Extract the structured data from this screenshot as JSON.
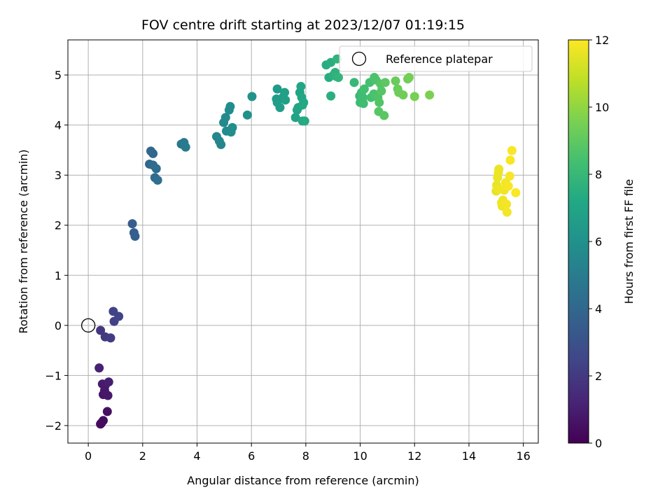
{
  "chart_data": {
    "type": "scatter",
    "title": "FOV centre drift starting at 2023/12/07 01:19:15",
    "xlabel": "Angular distance from reference (arcmin)",
    "ylabel": "Rotation from reference (arcmin)",
    "xlim": [
      -0.75,
      16.55
    ],
    "ylim": [
      -2.35,
      5.7
    ],
    "xticks": [
      0,
      2,
      4,
      6,
      8,
      10,
      12,
      14,
      16
    ],
    "yticks": [
      -2,
      -1,
      0,
      1,
      2,
      3,
      4,
      5
    ],
    "grid": true,
    "legend": {
      "position": "top-right",
      "entries": [
        "Reference platepar"
      ]
    },
    "reference_point": {
      "x": 0,
      "y": 0,
      "label": "Reference platepar"
    },
    "colorbar": {
      "label": "Hours from first FF file",
      "min": 0,
      "max": 12,
      "ticks": [
        0,
        2,
        4,
        6,
        8,
        10,
        12
      ],
      "colormap": "viridis"
    },
    "points": [
      {
        "x": 0.45,
        "y": -1.97,
        "c": 0.3
      },
      {
        "x": 0.55,
        "y": -1.9,
        "c": 0.4
      },
      {
        "x": 0.48,
        "y": -1.95,
        "c": 0.35
      },
      {
        "x": 0.7,
        "y": -1.72,
        "c": 0.5
      },
      {
        "x": 0.55,
        "y": -1.38,
        "c": 0.7
      },
      {
        "x": 0.72,
        "y": -1.4,
        "c": 0.8
      },
      {
        "x": 0.6,
        "y": -1.3,
        "c": 0.75
      },
      {
        "x": 0.52,
        "y": -1.17,
        "c": 0.9
      },
      {
        "x": 0.62,
        "y": -1.2,
        "c": 0.85
      },
      {
        "x": 0.75,
        "y": -1.13,
        "c": 1.0
      },
      {
        "x": 0.4,
        "y": -0.85,
        "c": 1.1
      },
      {
        "x": 0.45,
        "y": -0.1,
        "c": 1.9
      },
      {
        "x": 0.62,
        "y": -0.23,
        "c": 2.0
      },
      {
        "x": 0.82,
        "y": -0.25,
        "c": 2.1
      },
      {
        "x": 0.95,
        "y": 0.08,
        "c": 2.3
      },
      {
        "x": 1.12,
        "y": 0.18,
        "c": 2.4
      },
      {
        "x": 0.92,
        "y": 0.28,
        "c": 2.35
      },
      {
        "x": 1.62,
        "y": 2.03,
        "c": 3.5
      },
      {
        "x": 1.68,
        "y": 1.85,
        "c": 3.55
      },
      {
        "x": 1.72,
        "y": 1.78,
        "c": 3.6
      },
      {
        "x": 2.25,
        "y": 3.22,
        "c": 4.0
      },
      {
        "x": 2.3,
        "y": 3.48,
        "c": 4.05
      },
      {
        "x": 2.38,
        "y": 3.43,
        "c": 4.1
      },
      {
        "x": 2.38,
        "y": 3.2,
        "c": 4.15
      },
      {
        "x": 2.5,
        "y": 3.13,
        "c": 4.2
      },
      {
        "x": 2.45,
        "y": 2.95,
        "c": 4.25
      },
      {
        "x": 2.55,
        "y": 2.9,
        "c": 4.3
      },
      {
        "x": 3.42,
        "y": 3.62,
        "c": 4.8
      },
      {
        "x": 3.52,
        "y": 3.65,
        "c": 4.85
      },
      {
        "x": 3.58,
        "y": 3.56,
        "c": 4.9
      },
      {
        "x": 4.72,
        "y": 3.77,
        "c": 5.4
      },
      {
        "x": 4.82,
        "y": 3.68,
        "c": 5.45
      },
      {
        "x": 4.88,
        "y": 3.61,
        "c": 5.5
      },
      {
        "x": 4.98,
        "y": 4.05,
        "c": 5.6
      },
      {
        "x": 5.05,
        "y": 4.15,
        "c": 5.65
      },
      {
        "x": 5.08,
        "y": 3.88,
        "c": 5.7
      },
      {
        "x": 5.18,
        "y": 4.3,
        "c": 5.75
      },
      {
        "x": 5.22,
        "y": 4.37,
        "c": 5.8
      },
      {
        "x": 5.25,
        "y": 3.86,
        "c": 5.8
      },
      {
        "x": 5.3,
        "y": 3.95,
        "c": 5.85
      },
      {
        "x": 5.85,
        "y": 4.2,
        "c": 6.0
      },
      {
        "x": 6.02,
        "y": 4.57,
        "c": 6.1
      },
      {
        "x": 6.95,
        "y": 4.72,
        "c": 6.5
      },
      {
        "x": 6.92,
        "y": 4.52,
        "c": 6.55
      },
      {
        "x": 6.95,
        "y": 4.45,
        "c": 6.6
      },
      {
        "x": 7.05,
        "y": 4.35,
        "c": 6.65
      },
      {
        "x": 7.15,
        "y": 4.55,
        "c": 6.7
      },
      {
        "x": 7.22,
        "y": 4.65,
        "c": 6.75
      },
      {
        "x": 7.25,
        "y": 4.5,
        "c": 6.8
      },
      {
        "x": 7.62,
        "y": 4.15,
        "c": 6.9
      },
      {
        "x": 7.68,
        "y": 4.3,
        "c": 6.95
      },
      {
        "x": 7.72,
        "y": 4.35,
        "c": 7.0
      },
      {
        "x": 7.78,
        "y": 4.65,
        "c": 7.05
      },
      {
        "x": 7.82,
        "y": 4.77,
        "c": 7.1
      },
      {
        "x": 7.85,
        "y": 4.55,
        "c": 7.1
      },
      {
        "x": 7.88,
        "y": 4.4,
        "c": 7.15
      },
      {
        "x": 7.92,
        "y": 4.45,
        "c": 7.2
      },
      {
        "x": 7.88,
        "y": 4.08,
        "c": 7.25
      },
      {
        "x": 7.96,
        "y": 4.08,
        "c": 7.3
      },
      {
        "x": 8.75,
        "y": 5.2,
        "c": 7.4
      },
      {
        "x": 8.85,
        "y": 4.95,
        "c": 7.45
      },
      {
        "x": 8.92,
        "y": 5.25,
        "c": 7.5
      },
      {
        "x": 8.92,
        "y": 4.58,
        "c": 7.55
      },
      {
        "x": 9.02,
        "y": 5.0,
        "c": 7.6
      },
      {
        "x": 9.08,
        "y": 5.05,
        "c": 7.65
      },
      {
        "x": 9.12,
        "y": 4.97,
        "c": 7.7
      },
      {
        "x": 9.15,
        "y": 5.32,
        "c": 7.75
      },
      {
        "x": 9.2,
        "y": 4.95,
        "c": 7.8
      },
      {
        "x": 9.78,
        "y": 4.85,
        "c": 8.0
      },
      {
        "x": 9.98,
        "y": 4.58,
        "c": 8.1
      },
      {
        "x": 10.0,
        "y": 4.45,
        "c": 8.15
      },
      {
        "x": 10.05,
        "y": 4.65,
        "c": 8.2
      },
      {
        "x": 10.1,
        "y": 4.55,
        "c": 8.25
      },
      {
        "x": 10.12,
        "y": 4.43,
        "c": 8.3
      },
      {
        "x": 10.15,
        "y": 4.72,
        "c": 8.35
      },
      {
        "x": 10.35,
        "y": 4.85,
        "c": 8.4
      },
      {
        "x": 10.4,
        "y": 4.55,
        "c": 8.45
      },
      {
        "x": 10.5,
        "y": 4.62,
        "c": 8.5
      },
      {
        "x": 10.52,
        "y": 4.95,
        "c": 8.55
      },
      {
        "x": 10.58,
        "y": 4.9,
        "c": 8.6
      },
      {
        "x": 10.65,
        "y": 4.55,
        "c": 8.65
      },
      {
        "x": 10.7,
        "y": 4.45,
        "c": 8.7
      },
      {
        "x": 10.75,
        "y": 4.82,
        "c": 8.75
      },
      {
        "x": 10.78,
        "y": 4.68,
        "c": 8.8
      },
      {
        "x": 10.68,
        "y": 4.27,
        "c": 8.85
      },
      {
        "x": 10.88,
        "y": 4.19,
        "c": 8.9
      },
      {
        "x": 10.92,
        "y": 4.85,
        "c": 8.95
      },
      {
        "x": 11.3,
        "y": 4.88,
        "c": 9.2
      },
      {
        "x": 11.38,
        "y": 4.72,
        "c": 9.25
      },
      {
        "x": 11.42,
        "y": 4.65,
        "c": 9.3
      },
      {
        "x": 11.58,
        "y": 4.6,
        "c": 9.35
      },
      {
        "x": 11.75,
        "y": 4.92,
        "c": 9.4
      },
      {
        "x": 11.8,
        "y": 4.95,
        "c": 9.45
      },
      {
        "x": 12.0,
        "y": 4.57,
        "c": 9.5
      },
      {
        "x": 12.55,
        "y": 4.6,
        "c": 9.6
      },
      {
        "x": 15.0,
        "y": 2.68,
        "c": 11.6
      },
      {
        "x": 15.02,
        "y": 2.8,
        "c": 11.62
      },
      {
        "x": 15.05,
        "y": 2.95,
        "c": 11.64
      },
      {
        "x": 15.08,
        "y": 3.05,
        "c": 11.66
      },
      {
        "x": 15.1,
        "y": 3.12,
        "c": 11.68
      },
      {
        "x": 15.12,
        "y": 2.72,
        "c": 11.7
      },
      {
        "x": 15.2,
        "y": 2.45,
        "c": 11.72
      },
      {
        "x": 15.22,
        "y": 2.38,
        "c": 11.74
      },
      {
        "x": 15.25,
        "y": 2.5,
        "c": 11.76
      },
      {
        "x": 15.3,
        "y": 2.7,
        "c": 11.78
      },
      {
        "x": 15.35,
        "y": 2.85,
        "c": 11.8
      },
      {
        "x": 15.38,
        "y": 2.42,
        "c": 11.82
      },
      {
        "x": 15.4,
        "y": 2.26,
        "c": 11.84
      },
      {
        "x": 15.45,
        "y": 2.78,
        "c": 11.86
      },
      {
        "x": 15.5,
        "y": 2.98,
        "c": 11.88
      },
      {
        "x": 15.52,
        "y": 3.3,
        "c": 11.9
      },
      {
        "x": 15.58,
        "y": 3.49,
        "c": 11.92
      },
      {
        "x": 15.72,
        "y": 2.65,
        "c": 11.95
      }
    ]
  }
}
